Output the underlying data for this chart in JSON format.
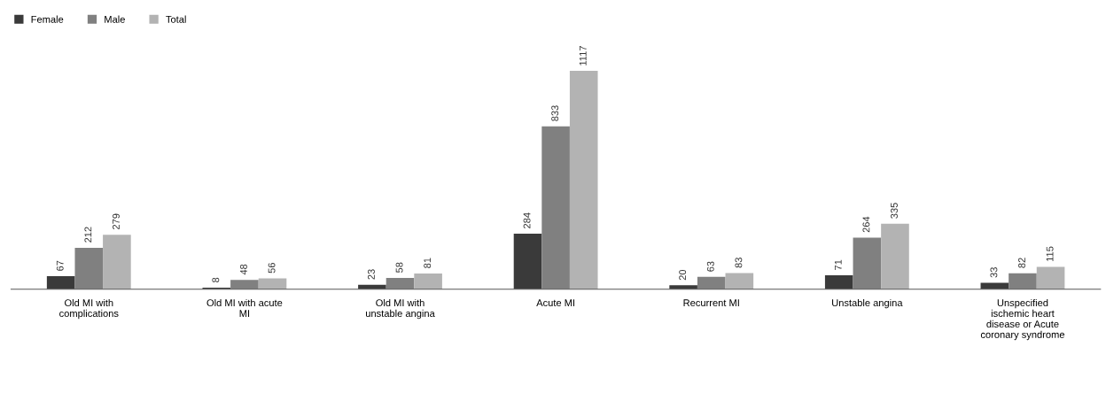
{
  "chart_data": {
    "type": "bar",
    "categories": [
      "Old MI with complications",
      "Old MI with acute MI",
      "Old MI with unstable angina",
      "Acute MI",
      "Recurrent MI",
      "Unstable angina",
      "Unspecified ischemic heart disease or Acute coronary syndrome"
    ],
    "series": [
      {
        "name": "Female",
        "color": "#3a3a3a",
        "values": [
          67,
          8,
          23,
          284,
          20,
          71,
          33
        ]
      },
      {
        "name": "Male",
        "color": "#808080",
        "values": [
          212,
          48,
          58,
          833,
          63,
          264,
          82
        ]
      },
      {
        "name": "Total",
        "color": "#b3b3b3",
        "values": [
          279,
          56,
          81,
          1117,
          83,
          335,
          115
        ]
      }
    ],
    "data_labels": true,
    "legend": "top left"
  }
}
